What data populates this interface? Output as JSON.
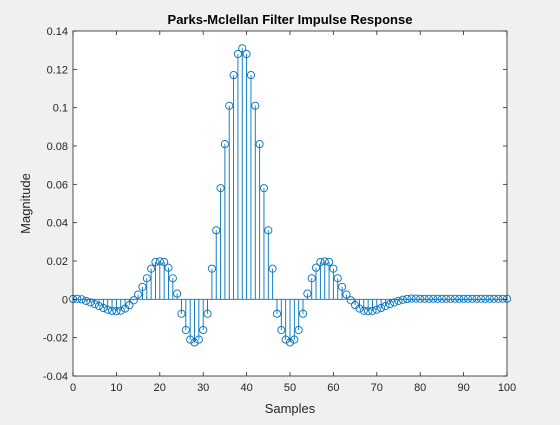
{
  "chart_data": {
    "type": "stem",
    "title": "Parks-Mclellan Filter Impulse Response",
    "xlabel": "Samples",
    "ylabel": "Magnitude",
    "xlim": [
      0,
      100
    ],
    "ylim": [
      -0.04,
      0.14
    ],
    "xticks": [
      0,
      10,
      20,
      30,
      40,
      50,
      60,
      70,
      80,
      90,
      100
    ],
    "yticks": [
      -0.04,
      -0.02,
      0,
      0.02,
      0.04,
      0.06,
      0.08,
      0.1,
      0.12,
      0.14
    ],
    "xtick_labels": [
      "0",
      "10",
      "20",
      "30",
      "40",
      "50",
      "60",
      "70",
      "80",
      "90",
      "100"
    ],
    "ytick_labels": [
      "-0.04",
      "-0.02",
      "0",
      "0.02",
      "0.04",
      "0.06",
      "0.08",
      "0.1",
      "0.12",
      "0.14"
    ],
    "grid": false,
    "marker": "open-circle",
    "series": [
      {
        "color": "#0072bd",
        "x": [
          0,
          1,
          2,
          3,
          4,
          5,
          6,
          7,
          8,
          9,
          10,
          11,
          12,
          13,
          14,
          15,
          16,
          17,
          18,
          19,
          20,
          21,
          22,
          23,
          24,
          25,
          26,
          27,
          28,
          29,
          30,
          31,
          32,
          33,
          34,
          35,
          36,
          37,
          38,
          39,
          40,
          41,
          42,
          43,
          44,
          45,
          46,
          47,
          48,
          49,
          50,
          51,
          52,
          53,
          54,
          55,
          56,
          57,
          58,
          59,
          60,
          61,
          62,
          63,
          64,
          65,
          66,
          67,
          68,
          69,
          70,
          71,
          72,
          73,
          74,
          75,
          76,
          77,
          78,
          79,
          80,
          81,
          82,
          83,
          84,
          85,
          86,
          87,
          88,
          89,
          90,
          91,
          92,
          93,
          94,
          95,
          96,
          97,
          98,
          99,
          100
        ],
        "values": [
          0.0002,
          0.0003,
          0,
          -0.0008,
          -0.0016,
          -0.0025,
          -0.0035,
          -0.0045,
          -0.0054,
          -0.006,
          -0.0062,
          -0.0059,
          -0.0048,
          -0.003,
          -0.0005,
          0.0025,
          0.0065,
          0.011,
          0.016,
          0.0195,
          0.0198,
          0.0195,
          0.0165,
          0.011,
          0.003,
          -0.0075,
          -0.016,
          -0.021,
          -0.0225,
          -0.021,
          -0.016,
          -0.0075,
          0.016,
          0.036,
          0.058,
          0.081,
          0.101,
          0.117,
          0.128,
          0.131,
          0.128,
          0.117,
          0.101,
          0.081,
          0.058,
          0.036,
          0.016,
          -0.0075,
          -0.016,
          -0.021,
          -0.0225,
          -0.021,
          -0.016,
          -0.0075,
          0.003,
          0.011,
          0.0165,
          0.0195,
          0.0198,
          0.0195,
          0.016,
          0.011,
          0.0065,
          0.0025,
          -0.0005,
          -0.003,
          -0.0048,
          -0.0059,
          -0.0062,
          -0.006,
          -0.0054,
          -0.0045,
          -0.0035,
          -0.0025,
          -0.0016,
          -0.0008,
          -0.0002,
          0.0002,
          0.0004,
          0.0004,
          0.0003,
          0.0003,
          0.0003,
          0.0003,
          0.0003,
          0.0003,
          0.0003,
          0.0003,
          0.0003,
          0.0003,
          0.0003,
          0.0003,
          0.0003,
          0.0003,
          0.0003,
          0.0003,
          0.0003,
          0.0003,
          0.0003,
          0.0003,
          0.0003
        ]
      }
    ]
  }
}
